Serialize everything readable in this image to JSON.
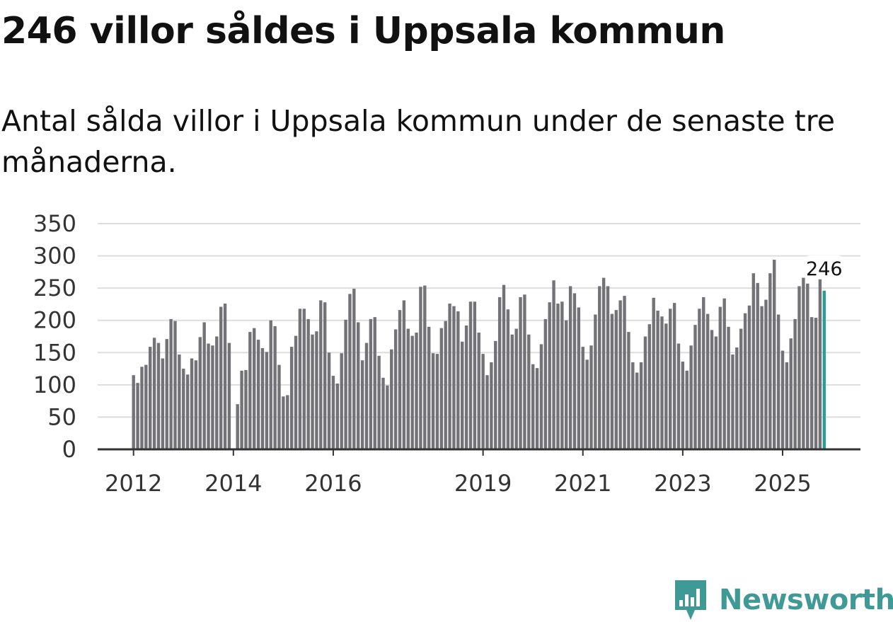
{
  "header": {
    "title": "246 villor såldes i Uppsala kommun",
    "subtitle": "Antal sålda villor i Uppsala kommun under de senaste tre månaderna."
  },
  "brand": {
    "name": "Newsworthy",
    "color": "#3f9a96"
  },
  "colors": {
    "bar": "#737276",
    "highlight": "#2a9d97",
    "grid": "#dddddd",
    "axis": "#333333"
  },
  "chart_data": {
    "type": "bar",
    "title": "Antal sålda villor i Uppsala kommun",
    "xlabel": "",
    "ylabel": "",
    "ylim": [
      0,
      350
    ],
    "yticks": [
      0,
      50,
      100,
      150,
      200,
      250,
      300,
      350
    ],
    "xtick_labels": [
      {
        "label": "2012",
        "index": 0
      },
      {
        "label": "2014",
        "index": 24
      },
      {
        "label": "2016",
        "index": 48
      },
      {
        "label": "2019",
        "index": 84
      },
      {
        "label": "2021",
        "index": 108
      },
      {
        "label": "2023",
        "index": 132
      },
      {
        "label": "2025",
        "index": 156
      }
    ],
    "frequency": "monthly, rolling three-month total",
    "first_period": "2012-01",
    "last_period": "2025-10",
    "highlight_label": "246",
    "values": [
      115,
      103,
      128,
      131,
      159,
      173,
      165,
      141,
      171,
      202,
      199,
      147,
      125,
      116,
      141,
      138,
      174,
      197,
      164,
      161,
      175,
      221,
      226,
      165,
      0,
      70,
      122,
      123,
      182,
      188,
      170,
      157,
      151,
      200,
      191,
      131,
      82,
      84,
      159,
      176,
      218,
      218,
      202,
      178,
      183,
      231,
      228,
      150,
      114,
      102,
      149,
      201,
      241,
      249,
      197,
      138,
      165,
      202,
      205,
      145,
      111,
      99,
      155,
      186,
      216,
      231,
      187,
      176,
      181,
      252,
      254,
      190,
      149,
      148,
      188,
      199,
      226,
      222,
      214,
      167,
      192,
      229,
      229,
      181,
      148,
      115,
      135,
      168,
      236,
      255,
      217,
      178,
      187,
      236,
      240,
      178,
      132,
      126,
      163,
      202,
      228,
      262,
      226,
      229,
      200,
      253,
      242,
      220,
      159,
      139,
      161,
      209,
      253,
      266,
      253,
      210,
      216,
      231,
      238,
      182,
      135,
      119,
      135,
      175,
      194,
      235,
      215,
      206,
      195,
      218,
      227,
      164,
      136,
      122,
      161,
      193,
      218,
      236,
      210,
      185,
      175,
      221,
      234,
      190,
      147,
      158,
      187,
      211,
      223,
      273,
      258,
      222,
      232,
      273,
      294,
      209,
      153,
      135,
      172,
      202,
      253,
      266,
      257,
      205,
      204,
      265,
      246
    ]
  }
}
